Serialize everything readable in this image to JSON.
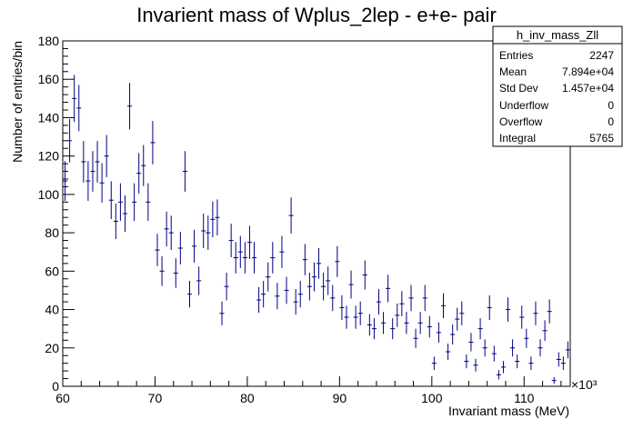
{
  "chart_data": {
    "type": "scatter",
    "title": "Invarient mass of Wplus_2lep - e+e- pair",
    "xlabel": "Invariant mass (MeV)",
    "ylabel": "Number of entries/bin",
    "x_exponent_label": "×10³",
    "xlim": [
      60,
      115
    ],
    "ylim": [
      0,
      180
    ],
    "x_ticks": [
      60,
      70,
      80,
      90,
      100,
      110
    ],
    "y_ticks": [
      0,
      20,
      40,
      60,
      80,
      100,
      120,
      140,
      160,
      180
    ],
    "bin_width": 0.5,
    "color": "#00007f",
    "stats_box": {
      "title": "h_inv_mass_Zll",
      "rows": [
        {
          "label": "Entries",
          "value": "2247"
        },
        {
          "label": "Mean",
          "value": "7.894e+04"
        },
        {
          "label": "Std Dev",
          "value": "1.457e+04"
        },
        {
          "label": "Underflow",
          "value": "0"
        },
        {
          "label": "Overflow",
          "value": "0"
        },
        {
          "label": "Integral",
          "value": "5765"
        }
      ]
    },
    "series": [
      {
        "x": [
          60.25,
          60.75,
          61.25,
          61.75,
          62.25,
          62.75,
          63.25,
          63.75,
          64.25,
          64.75,
          65.25,
          65.75,
          66.25,
          66.75,
          67.25,
          67.75,
          68.25,
          68.75,
          69.25,
          69.75,
          70.25,
          70.75,
          71.25,
          71.75,
          72.25,
          72.75,
          73.25,
          73.75,
          74.25,
          74.75,
          75.25,
          75.75,
          76.25,
          76.75,
          77.25,
          77.75,
          78.25,
          78.75,
          79.25,
          79.75,
          80.25,
          80.75,
          81.25,
          81.75,
          82.25,
          82.75,
          83.25,
          83.75,
          84.25,
          84.75,
          85.25,
          85.75,
          86.25,
          86.75,
          87.25,
          87.75,
          88.25,
          88.75,
          89.25,
          89.75,
          90.25,
          90.75,
          91.25,
          91.75,
          92.25,
          92.75,
          93.25,
          93.75,
          94.25,
          94.75,
          95.25,
          95.75,
          96.25,
          96.75,
          97.25,
          97.75,
          98.25,
          98.75,
          99.25,
          99.75,
          100.25,
          100.75,
          101.25,
          101.75,
          102.25,
          102.75,
          103.25,
          103.75,
          104.25,
          104.75,
          105.25,
          105.75,
          106.25,
          106.75,
          107.25,
          107.75,
          108.25,
          108.75,
          109.25,
          109.75,
          110.25,
          110.75,
          111.25,
          111.75,
          112.25,
          112.75,
          113.25,
          113.75,
          114.25,
          114.75
        ],
        "y": [
          107,
          128,
          150,
          145,
          117,
          107,
          112,
          117,
          106,
          120,
          97,
          86,
          96,
          90,
          146,
          96,
          111,
          115,
          96,
          127,
          71,
          60,
          82,
          80,
          59,
          72,
          112,
          48,
          73,
          55,
          81,
          80,
          87,
          88,
          38,
          52,
          76,
          67,
          70,
          67,
          75,
          67,
          45,
          48,
          57,
          67,
          47,
          70,
          50,
          89,
          44,
          48,
          66,
          52,
          57,
          64,
          52,
          55,
          46,
          65,
          41,
          36,
          53,
          36,
          38,
          58,
          32,
          30,
          44,
          33,
          51,
          30,
          37,
          43,
          33,
          46,
          25,
          33,
          46,
          31,
          12,
          28,
          42,
          18,
          27,
          35,
          38,
          13,
          23,
          11,
          30,
          20,
          41,
          17,
          6,
          10,
          40,
          20,
          13,
          36,
          25,
          12,
          38,
          20,
          29,
          39,
          3,
          14,
          12,
          19
        ]
      }
    ]
  }
}
